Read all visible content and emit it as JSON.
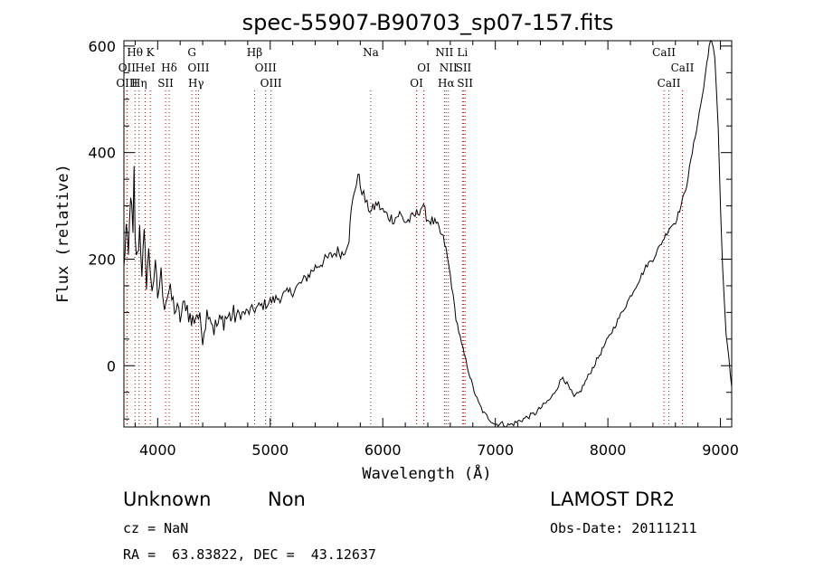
{
  "chart_data": {
    "type": "line",
    "title": "spec-55907-B90703_sp07-157.fits",
    "xlabel": "Wavelength (Å)",
    "ylabel": "Flux (relative)",
    "xlim": [
      3700,
      9100
    ],
    "ylim": [
      -115,
      610
    ],
    "xticks": [
      4000,
      5000,
      6000,
      7000,
      8000,
      9000
    ],
    "yticks": [
      0,
      200,
      400,
      600
    ],
    "grid": false,
    "series": [
      {
        "x": [
          3700,
          3720,
          3740,
          3760,
          3780,
          3790,
          3800,
          3820,
          3840,
          3860,
          3880,
          3900,
          3920,
          3950,
          3980,
          4000,
          4030,
          4060,
          4100,
          4150,
          4200,
          4250,
          4300,
          4350,
          4400,
          4450,
          4500,
          4550,
          4600,
          4700,
          4800,
          4900,
          5000,
          5100,
          5200,
          5300,
          5400,
          5500,
          5600,
          5650,
          5700,
          5720,
          5750,
          5780,
          5800,
          5830,
          5860,
          5900,
          5950,
          6000,
          6050,
          6100,
          6150,
          6200,
          6250,
          6300,
          6350,
          6400,
          6450,
          6500,
          6550,
          6600,
          6650,
          6700,
          6750,
          6800,
          6850,
          6900,
          6950,
          7000,
          7050,
          7100,
          7150,
          7200,
          7250,
          7300,
          7350,
          7400,
          7450,
          7500,
          7550,
          7600,
          7650,
          7700,
          7750,
          7800,
          7850,
          7900,
          7950,
          8000,
          8050,
          8100,
          8150,
          8200,
          8250,
          8300,
          8350,
          8400,
          8450,
          8500,
          8550,
          8600,
          8650,
          8700,
          8750,
          8800,
          8850,
          8880,
          8900,
          8920,
          8950,
          8980,
          9000,
          9020,
          9050,
          9100
        ],
        "y": [
          180,
          260,
          200,
          330,
          240,
          360,
          230,
          200,
          260,
          180,
          240,
          160,
          210,
          150,
          180,
          130,
          170,
          120,
          140,
          110,
          90,
          120,
          80,
          100,
          60,
          110,
          70,
          80,
          90,
          95,
          100,
          110,
          120,
          130,
          140,
          160,
          185,
          200,
          215,
          210,
          240,
          290,
          330,
          360,
          340,
          320,
          300,
          290,
          305,
          290,
          280,
          275,
          285,
          270,
          275,
          285,
          300,
          275,
          270,
          255,
          230,
          170,
          90,
          40,
          0,
          -40,
          -70,
          -90,
          -100,
          -110,
          -108,
          -112,
          -110,
          -105,
          -100,
          -95,
          -90,
          -80,
          -70,
          -60,
          -40,
          -20,
          -40,
          -60,
          -50,
          -30,
          -10,
          10,
          30,
          50,
          70,
          90,
          110,
          130,
          150,
          170,
          190,
          200,
          220,
          240,
          260,
          270,
          300,
          340,
          400,
          460,
          520,
          570,
          600,
          610,
          580,
          450,
          300,
          180,
          60,
          -40
        ]
      }
    ],
    "line_markers": [
      {
        "label": "Hθ",
        "x": 3798,
        "row": 1
      },
      {
        "label": "K",
        "x": 3934,
        "row": 1
      },
      {
        "label": "G",
        "x": 4304,
        "row": 1
      },
      {
        "label": "Hβ",
        "x": 4861,
        "row": 1
      },
      {
        "label": "Na",
        "x": 5893,
        "row": 1
      },
      {
        "label": "NII",
        "x": 6548,
        "row": 1
      },
      {
        "label": "Li",
        "x": 6708,
        "row": 1
      },
      {
        "label": "CaII",
        "x": 8498,
        "row": 1
      },
      {
        "label": "OII",
        "x": 3727,
        "row": 2
      },
      {
        "label": "HeI",
        "x": 3889,
        "row": 2
      },
      {
        "label": "Hδ",
        "x": 4102,
        "row": 2
      },
      {
        "label": "OIII",
        "x": 4363,
        "row": 2
      },
      {
        "label": "OIII",
        "x": 4959,
        "row": 2
      },
      {
        "label": "OI",
        "x": 6364,
        "row": 2
      },
      {
        "label": "NII",
        "x": 6583,
        "row": 2
      },
      {
        "label": "SII",
        "x": 6717,
        "row": 2
      },
      {
        "label": "CaII",
        "x": 8662,
        "row": 2
      },
      {
        "label": "OIII",
        "x": 3727,
        "row": 3
      },
      {
        "label": "Hη",
        "x": 3835,
        "row": 3
      },
      {
        "label": "SII",
        "x": 4070,
        "row": 3
      },
      {
        "label": "Hγ",
        "x": 4341,
        "row": 3
      },
      {
        "label": "OIII",
        "x": 5007,
        "row": 3
      },
      {
        "label": "OI",
        "x": 6300,
        "row": 3
      },
      {
        "label": "Hα",
        "x": 6563,
        "row": 3
      },
      {
        "label": "SII",
        "x": 6731,
        "row": 3
      },
      {
        "label": "CaII",
        "x": 8542,
        "row": 3
      }
    ]
  },
  "info": {
    "class": "Unknown",
    "subclass": "Non",
    "survey": "LAMOST DR2",
    "cz": "cz = NaN",
    "obs_date": "Obs-Date: 20111211",
    "coords": "RA =  63.83822, DEC =  43.12637"
  },
  "colors": {
    "line": "#000000",
    "marker": "#cc0000"
  }
}
